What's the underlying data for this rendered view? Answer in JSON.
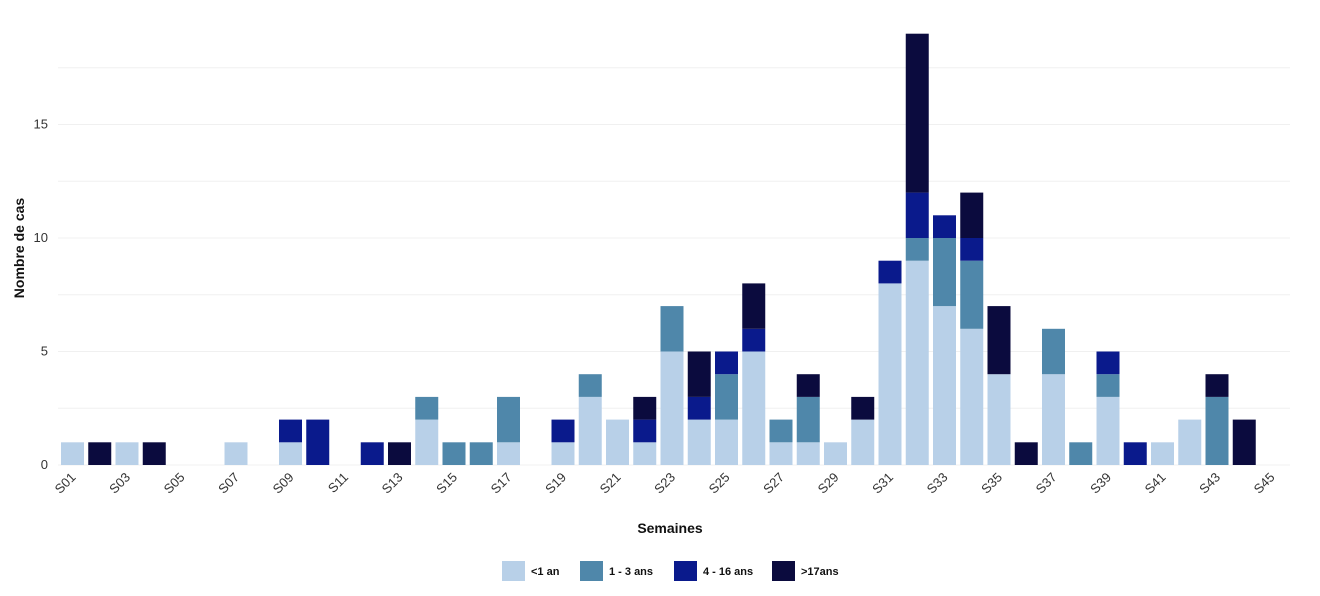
{
  "chart_data": {
    "type": "bar",
    "stacked": true,
    "xlabel": "Semaines",
    "ylabel": "Nombre de cas",
    "ylim": [
      0,
      19
    ],
    "yticks": [
      0,
      5,
      10,
      15
    ],
    "grid": true,
    "legend_position": "bottom",
    "categories": [
      "S01",
      "S02",
      "S03",
      "S04",
      "S05",
      "S06",
      "S07",
      "S08",
      "S09",
      "S10",
      "S11",
      "S12",
      "S13",
      "S14",
      "S15",
      "S16",
      "S17",
      "S18",
      "S19",
      "S20",
      "S21",
      "S22",
      "S23",
      "S24",
      "S25",
      "S26",
      "S27",
      "S28",
      "S29",
      "S30",
      "S31",
      "S32",
      "S33",
      "S34",
      "S35",
      "S36",
      "S37",
      "S38",
      "S39",
      "S40",
      "S41",
      "S42",
      "S43",
      "S44",
      "S45"
    ],
    "tick_labels": [
      "S01",
      "S03",
      "S05",
      "S07",
      "S09",
      "S11",
      "S13",
      "S15",
      "S17",
      "S19",
      "S21",
      "S23",
      "S25",
      "S27",
      "S29",
      "S31",
      "S33",
      "S35",
      "S37",
      "S39",
      "S41",
      "S43",
      "S45"
    ],
    "series": [
      {
        "name": "<1 an",
        "color": "#b8d0e8",
        "values": [
          1,
          0,
          1,
          0,
          0,
          0,
          1,
          0,
          1,
          0,
          0,
          0,
          0,
          2,
          0,
          0,
          1,
          0,
          1,
          3,
          2,
          1,
          5,
          2,
          2,
          5,
          1,
          1,
          1,
          2,
          8,
          9,
          7,
          6,
          4,
          0,
          4,
          0,
          3,
          0,
          1,
          2,
          0,
          0,
          0
        ]
      },
      {
        "name": "1 - 3 ans",
        "color": "#4f87aa",
        "values": [
          0,
          0,
          0,
          0,
          0,
          0,
          0,
          0,
          0,
          0,
          0,
          0,
          0,
          1,
          1,
          1,
          2,
          0,
          0,
          1,
          0,
          0,
          2,
          0,
          2,
          0,
          1,
          2,
          0,
          0,
          0,
          1,
          3,
          3,
          0,
          0,
          2,
          1,
          1,
          0,
          0,
          0,
          3,
          0,
          0
        ]
      },
      {
        "name": "4 - 16 ans",
        "color": "#0a1a8c",
        "values": [
          0,
          0,
          0,
          0,
          0,
          0,
          0,
          0,
          1,
          2,
          0,
          1,
          0,
          0,
          0,
          0,
          0,
          0,
          1,
          0,
          0,
          1,
          0,
          1,
          1,
          1,
          0,
          0,
          0,
          0,
          1,
          2,
          1,
          1,
          0,
          0,
          0,
          0,
          1,
          1,
          0,
          0,
          0,
          0,
          0
        ]
      },
      {
        "name": ">17ans",
        "color": "#0b0b3e",
        "values": [
          0,
          1,
          0,
          1,
          0,
          0,
          0,
          0,
          0,
          0,
          0,
          0,
          1,
          0,
          0,
          0,
          0,
          0,
          0,
          0,
          0,
          1,
          0,
          2,
          0,
          2,
          0,
          1,
          0,
          1,
          0,
          7,
          0,
          2,
          3,
          1,
          0,
          0,
          0,
          0,
          0,
          0,
          1,
          2,
          0
        ]
      }
    ]
  }
}
